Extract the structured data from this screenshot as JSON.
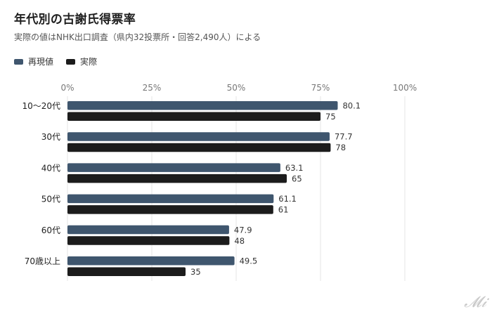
{
  "colors": {
    "series_a": "#3f566e",
    "series_b": "#1c1c1c",
    "grid": "#e6e6e6"
  },
  "chart_data": {
    "type": "bar",
    "orientation": "horizontal",
    "title": "年代別の古謝氏得票率",
    "subtitle": "実際の値はNHK出口調査（県内32投票所・回答2,490人）による",
    "categories": [
      "10〜20代",
      "30代",
      "40代",
      "50代",
      "60代",
      "70歳以上"
    ],
    "series": [
      {
        "name": "再現値",
        "values": [
          80.1,
          77.7,
          63.1,
          61.1,
          47.9,
          49.5
        ]
      },
      {
        "name": "実際",
        "values": [
          75,
          78,
          65,
          61,
          48,
          35
        ]
      }
    ],
    "value_labels": [
      [
        "80.1",
        "77.7",
        "63.1",
        "61.1",
        "47.9",
        "49.5"
      ],
      [
        "75",
        "78",
        "65",
        "61",
        "48",
        "35"
      ]
    ],
    "xlim": [
      0,
      100
    ],
    "xticks": [
      "0%",
      "25%",
      "50%",
      "75%",
      "100%"
    ],
    "grid": true,
    "legend_position": "top-left"
  },
  "watermark": "ITmedia"
}
